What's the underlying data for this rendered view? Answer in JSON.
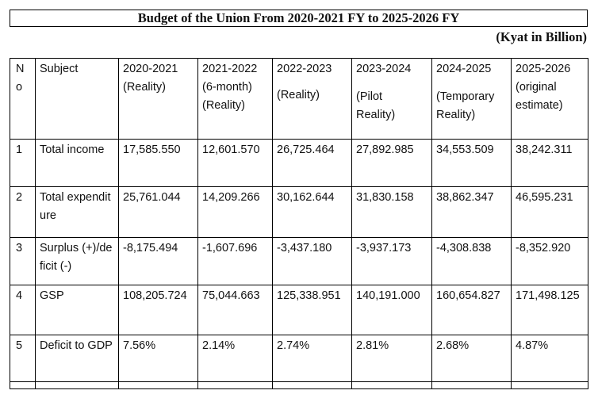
{
  "title": "Budget of the Union From 2020-2021 FY to 2025-2026 FY",
  "unit_note": "(Kyat in Billion)",
  "table": {
    "header": {
      "no": [
        "N",
        "o"
      ],
      "subject": "Subject",
      "columns": [
        {
          "year": "2020-2021",
          "note": "(Reality)"
        },
        {
          "year": "2021-2022",
          "note_lines": [
            "(6-month)",
            "(Reality)"
          ]
        },
        {
          "year": "2022-2023",
          "note": "(Reality)"
        },
        {
          "year": "2023-2024",
          "note_lines": [
            "(Pilot",
            "Reality)"
          ]
        },
        {
          "year": "2024-2025",
          "note_lines": [
            "(Temporary",
            "Reality)"
          ]
        },
        {
          "year": "2025-2026",
          "note_lines": [
            "(original",
            "estimate)"
          ]
        }
      ]
    },
    "rows": [
      {
        "no": "1",
        "subject": "Total income",
        "values": [
          "17,585.550",
          "12,601.570",
          "26,725.464",
          "27,892.985",
          "34,553.509",
          "38,242.311"
        ]
      },
      {
        "no": "2",
        "subject": "Total expenditure",
        "values": [
          "25,761.044",
          "14,209.266",
          "30,162.644",
          "31,830.158",
          "38,862.347",
          "46,595.231"
        ]
      },
      {
        "no": "3",
        "subject": "Surplus (+)/deficit (-)",
        "values": [
          "-8,175.494",
          "-1,607.696",
          "-3,437.180",
          "-3,937.173",
          "-4,308.838",
          "-8,352.920"
        ]
      },
      {
        "no": "4",
        "subject": "GSP",
        "values": [
          "108,205.724",
          "75,044.663",
          "125,338.951",
          "140,191.000",
          "160,654.827",
          "171,498.125"
        ]
      },
      {
        "no": "5",
        "subject": "Deficit to GDP",
        "values": [
          "7.56%",
          "2.14%",
          "2.74%",
          "2.81%",
          "2.68%",
          "4.87%"
        ]
      }
    ]
  }
}
